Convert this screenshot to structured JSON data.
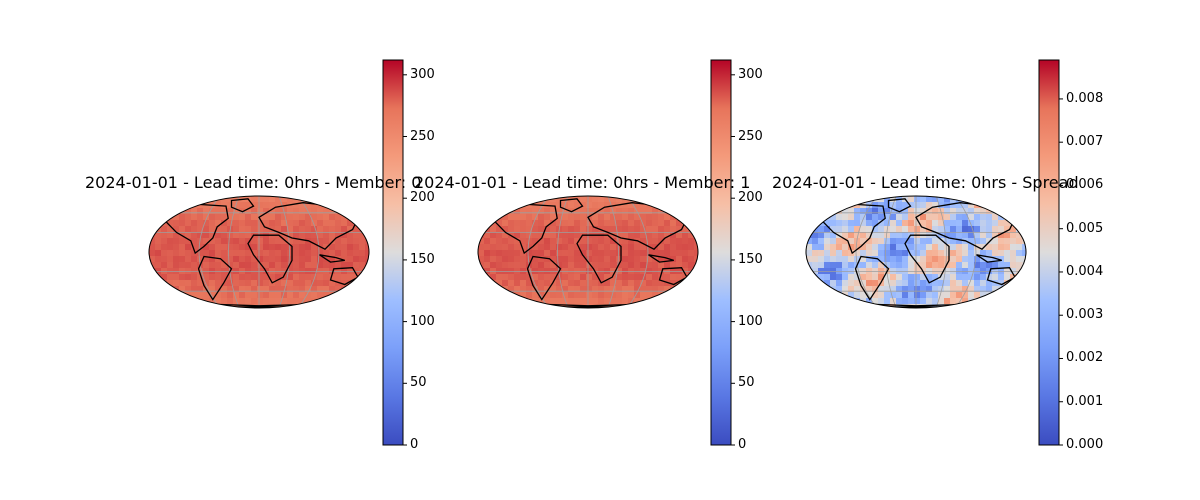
{
  "figure": {
    "panels": [
      {
        "id": "member-0",
        "title": "2024-01-01 - Lead time: 0hrs - Member: 0",
        "colormap": "coolwarm",
        "field": "warm",
        "colorbar": {
          "min": 0,
          "max": 312,
          "ticks": [
            "0",
            "50",
            "100",
            "150",
            "200",
            "250",
            "300"
          ],
          "tick_values": [
            0,
            50,
            100,
            150,
            200,
            250,
            300
          ]
        }
      },
      {
        "id": "member-1",
        "title": "2024-01-01 - Lead time: 0hrs - Member: 1",
        "colormap": "coolwarm",
        "field": "warm",
        "colorbar": {
          "min": 0,
          "max": 312,
          "ticks": [
            "0",
            "50",
            "100",
            "150",
            "200",
            "250",
            "300"
          ],
          "tick_values": [
            0,
            50,
            100,
            150,
            200,
            250,
            300
          ]
        }
      },
      {
        "id": "spread",
        "title": "2024-01-01 - Lead time: 0hrs - Spread",
        "colormap": "coolwarm",
        "field": "mixed",
        "colorbar": {
          "min": 0,
          "max": 0.0089,
          "ticks": [
            "0.000",
            "0.001",
            "0.002",
            "0.003",
            "0.004",
            "0.005",
            "0.006",
            "0.007",
            "0.008"
          ],
          "tick_values": [
            0,
            0.001,
            0.002,
            0.003,
            0.004,
            0.005,
            0.006,
            0.007,
            0.008
          ]
        }
      }
    ]
  },
  "chart_data": [
    {
      "type": "heatmap",
      "projection": "robinson",
      "title": "2024-01-01 - Lead time: 0hrs - Member: 0",
      "colorbar_range": [
        0,
        312
      ],
      "approx_field_range": [
        230,
        305
      ]
    },
    {
      "type": "heatmap",
      "projection": "robinson",
      "title": "2024-01-01 - Lead time: 0hrs - Member: 1",
      "colorbar_range": [
        0,
        312
      ],
      "approx_field_range": [
        230,
        305
      ]
    },
    {
      "type": "heatmap",
      "projection": "robinson",
      "title": "2024-01-01 - Lead time: 0hrs - Spread",
      "colorbar_range": [
        0,
        0.0089
      ],
      "approx_field_range": [
        0.002,
        0.0075
      ]
    }
  ]
}
